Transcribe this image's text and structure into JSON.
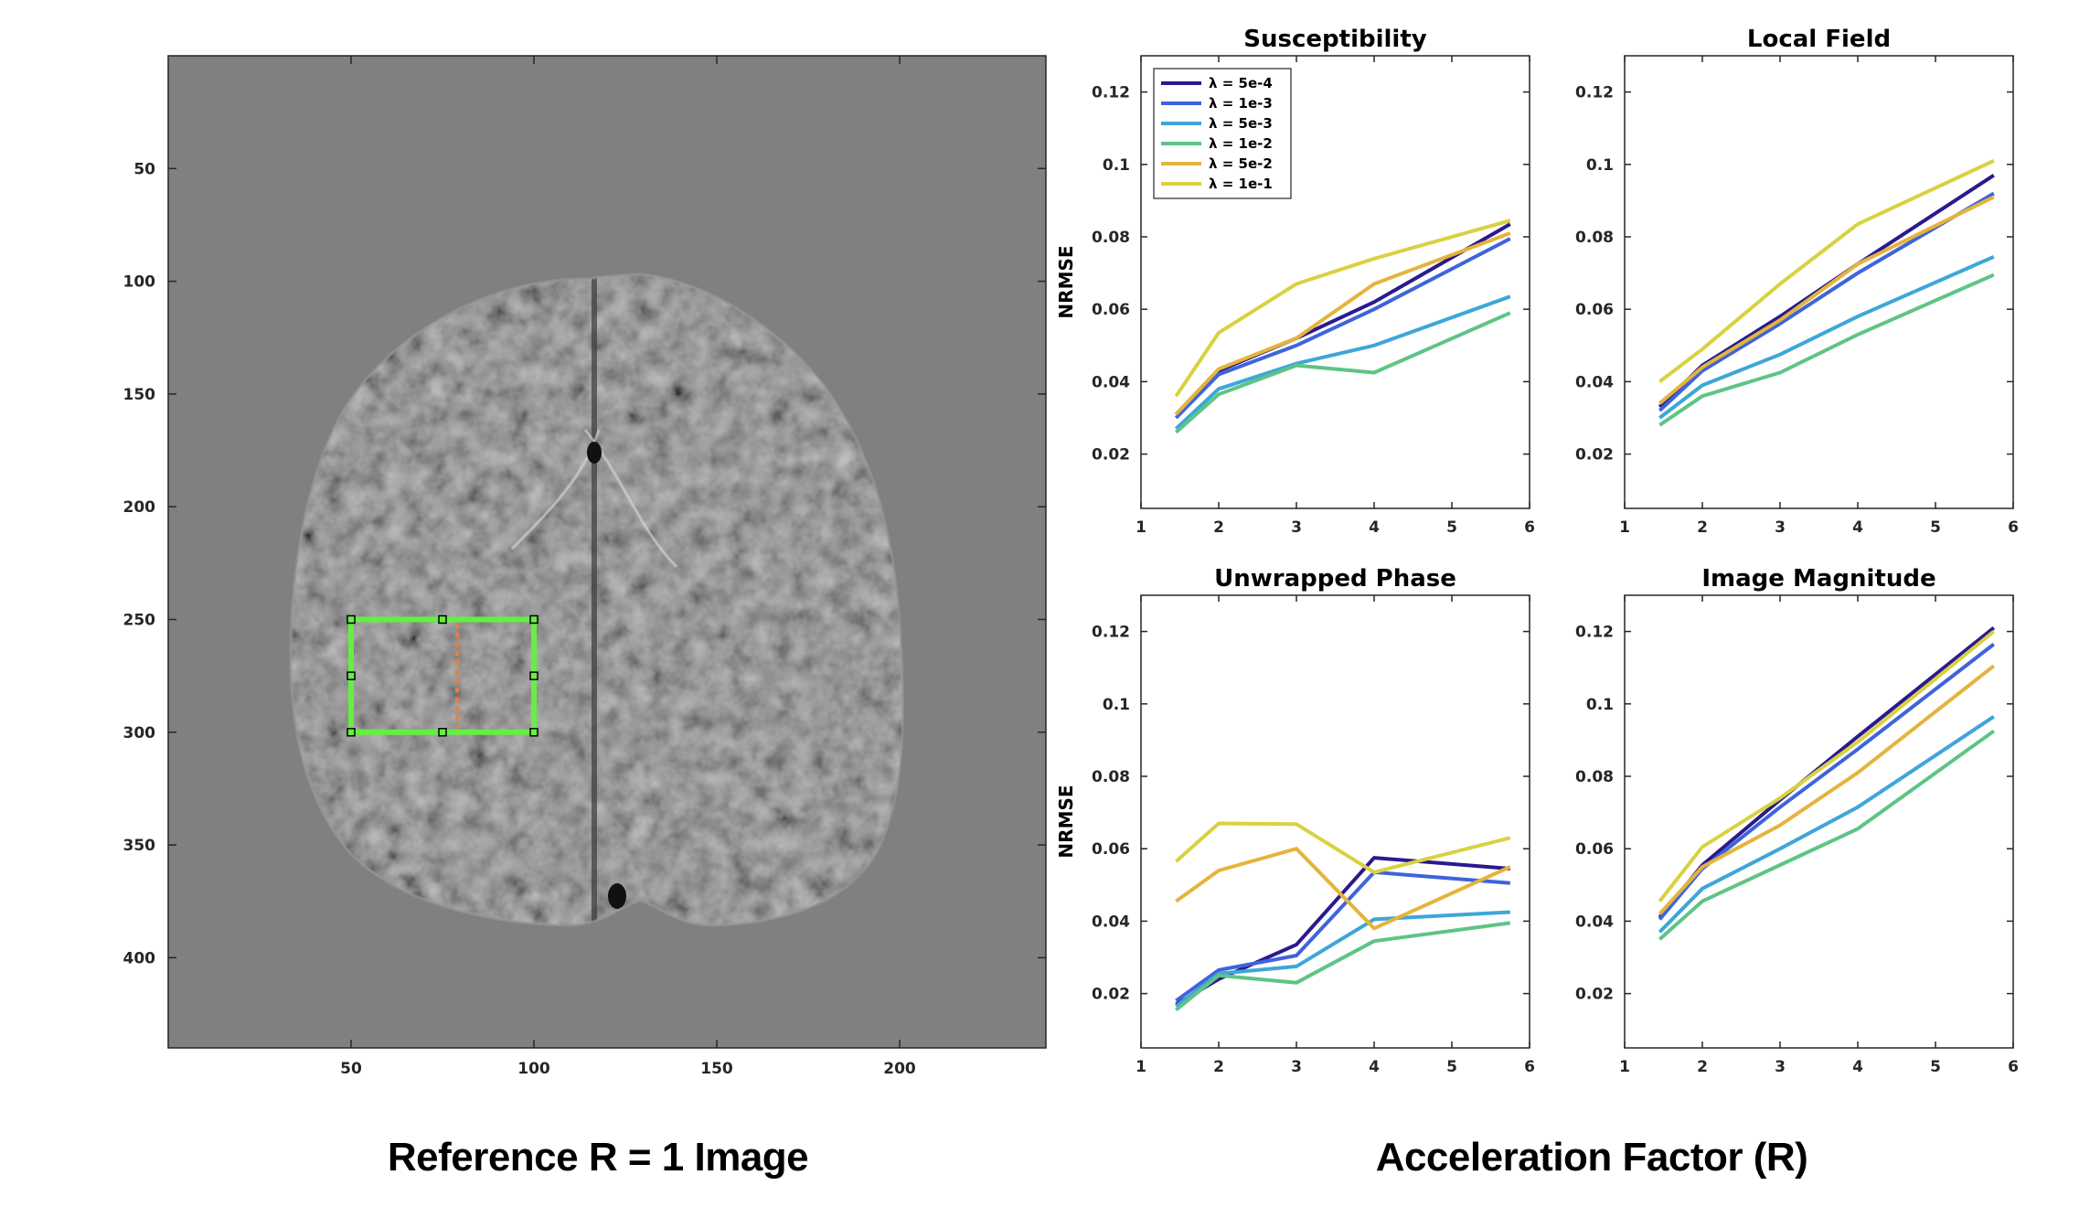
{
  "caption_left": "Reference R = 1 Image",
  "caption_right": "Acceleration Factor (R)",
  "image_panel": {
    "type": "image",
    "description_name": "brain-axial-slice",
    "x_ticks": [
      50,
      100,
      150,
      200
    ],
    "y_ticks": [
      50,
      100,
      150,
      200,
      250,
      300,
      350,
      400
    ],
    "x_range": [
      0,
      240
    ],
    "y_range": [
      0,
      440
    ],
    "roi": {
      "x": [
        50,
        100
      ],
      "y": [
        250,
        300
      ],
      "color": "#66ee44"
    },
    "roi_midline": {
      "x": 79,
      "y": [
        252,
        298
      ],
      "color": "#e8803a"
    },
    "background_color": "#808080"
  },
  "legend": [
    {
      "label": "λ = 5e-4",
      "color": "#2a1a8e"
    },
    {
      "label": "λ = 1e-3",
      "color": "#3e64dc"
    },
    {
      "label": "λ = 5e-3",
      "color": "#3ea6d8"
    },
    {
      "label": "λ = 1e-2",
      "color": "#5ec486"
    },
    {
      "label": "λ = 5e-2",
      "color": "#e4b43c"
    },
    {
      "label": "λ = 1e-1",
      "color": "#d8d240"
    }
  ],
  "chart_data": [
    {
      "type": "line",
      "title": "Susceptibility",
      "xlabel": "",
      "ylabel": "NRMSE",
      "xlim": [
        1,
        6
      ],
      "ylim": [
        0.005,
        0.13
      ],
      "x_ticks": [
        1,
        2,
        3,
        4,
        5,
        6
      ],
      "y_ticks": [
        0.02,
        0.04,
        0.06,
        0.08,
        0.1,
        0.12
      ],
      "x": [
        1.45,
        2,
        3,
        4,
        5.75
      ],
      "series": [
        {
          "name": "λ = 5e-4",
          "values": [
            0.031,
            0.043,
            0.052,
            0.062,
            0.0835
          ]
        },
        {
          "name": "λ = 1e-3",
          "values": [
            0.03,
            0.042,
            0.05,
            0.06,
            0.0795
          ]
        },
        {
          "name": "λ = 5e-3",
          "values": [
            0.027,
            0.038,
            0.045,
            0.05,
            0.0635
          ]
        },
        {
          "name": "λ = 1e-2",
          "values": [
            0.026,
            0.0365,
            0.0445,
            0.0425,
            0.059
          ]
        },
        {
          "name": "λ = 5e-2",
          "values": [
            0.031,
            0.0435,
            0.052,
            0.067,
            0.081
          ]
        },
        {
          "name": "λ = 1e-1",
          "values": [
            0.036,
            0.0535,
            0.067,
            0.074,
            0.0845
          ]
        }
      ]
    },
    {
      "type": "line",
      "title": "Local Field",
      "xlabel": "",
      "ylabel": "",
      "xlim": [
        1,
        6
      ],
      "ylim": [
        0.005,
        0.13
      ],
      "x_ticks": [
        1,
        2,
        3,
        4,
        5,
        6
      ],
      "y_ticks": [
        0.02,
        0.04,
        0.06,
        0.08,
        0.1,
        0.12
      ],
      "x": [
        1.45,
        2,
        3,
        4,
        5.75
      ],
      "series": [
        {
          "name": "λ = 5e-4",
          "values": [
            0.033,
            0.0445,
            0.058,
            0.0725,
            0.097
          ]
        },
        {
          "name": "λ = 1e-3",
          "values": [
            0.032,
            0.043,
            0.056,
            0.07,
            0.092
          ]
        },
        {
          "name": "λ = 5e-3",
          "values": [
            0.03,
            0.039,
            0.0475,
            0.058,
            0.0745
          ]
        },
        {
          "name": "λ = 1e-2",
          "values": [
            0.028,
            0.036,
            0.0425,
            0.053,
            0.0695
          ]
        },
        {
          "name": "λ = 5e-2",
          "values": [
            0.034,
            0.044,
            0.057,
            0.0725,
            0.091
          ]
        },
        {
          "name": "λ = 1e-1",
          "values": [
            0.04,
            0.049,
            0.067,
            0.0835,
            0.101
          ]
        }
      ]
    },
    {
      "type": "line",
      "title": "Unwrapped Phase",
      "xlabel": "",
      "ylabel": "NRMSE",
      "xlim": [
        1,
        6
      ],
      "ylim": [
        0.005,
        0.13
      ],
      "x_ticks": [
        1,
        2,
        3,
        4,
        5,
        6
      ],
      "y_ticks": [
        0.02,
        0.04,
        0.06,
        0.08,
        0.1,
        0.12
      ],
      "x": [
        1.45,
        2,
        3,
        4,
        5.75
      ],
      "series": [
        {
          "name": "λ = 5e-4",
          "values": [
            0.017,
            0.024,
            0.0335,
            0.0575,
            0.0545
          ]
        },
        {
          "name": "λ = 1e-3",
          "values": [
            0.018,
            0.0265,
            0.0305,
            0.0535,
            0.0505
          ]
        },
        {
          "name": "λ = 5e-3",
          "values": [
            0.0165,
            0.0255,
            0.0275,
            0.0405,
            0.0425
          ]
        },
        {
          "name": "λ = 1e-2",
          "values": [
            0.0155,
            0.025,
            0.023,
            0.0345,
            0.0395
          ]
        },
        {
          "name": "λ = 5e-2",
          "values": [
            0.0455,
            0.054,
            0.06,
            0.038,
            0.055
          ]
        },
        {
          "name": "λ = 1e-1",
          "values": [
            0.0565,
            0.067,
            0.0668,
            0.0535,
            0.063
          ]
        }
      ]
    },
    {
      "type": "line",
      "title": "Image Magnitude",
      "xlabel": "",
      "ylabel": "",
      "xlim": [
        1,
        6
      ],
      "ylim": [
        0.005,
        0.13
      ],
      "x_ticks": [
        1,
        2,
        3,
        4,
        5,
        6
      ],
      "y_ticks": [
        0.02,
        0.04,
        0.06,
        0.08,
        0.1,
        0.12
      ],
      "x": [
        1.45,
        2,
        3,
        4,
        5.75
      ],
      "series": [
        {
          "name": "λ = 5e-4",
          "values": [
            0.041,
            0.0555,
            0.0735,
            0.091,
            0.121
          ]
        },
        {
          "name": "λ = 1e-3",
          "values": [
            0.0405,
            0.0545,
            0.0715,
            0.0875,
            0.1165
          ]
        },
        {
          "name": "λ = 5e-3",
          "values": [
            0.037,
            0.049,
            0.06,
            0.0715,
            0.0965
          ]
        },
        {
          "name": "λ = 1e-2",
          "values": [
            0.035,
            0.0455,
            0.0555,
            0.0655,
            0.0925
          ]
        },
        {
          "name": "λ = 5e-2",
          "values": [
            0.042,
            0.055,
            0.0665,
            0.081,
            0.1105
          ]
        },
        {
          "name": "λ = 1e-1",
          "values": [
            0.0455,
            0.0605,
            0.074,
            0.0895,
            0.12
          ]
        }
      ]
    }
  ]
}
